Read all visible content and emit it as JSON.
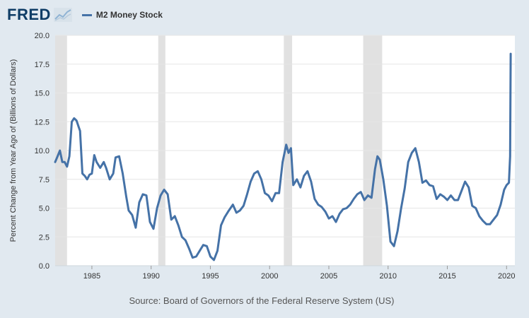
{
  "header": {
    "logo_text": "FRED",
    "logo_icon": "chart-line-icon",
    "legend_label": "M2 Money Stock"
  },
  "colors": {
    "background": "#e1e9f0",
    "plot_background": "#ffffff",
    "series": "#4572a7",
    "recession": "#e1e1e1",
    "grid": "#e6e6e6",
    "logo": "#0f3d66"
  },
  "source": "Source: Board of Governors of the Federal Reserve System (US)",
  "chart_data": {
    "type": "line",
    "title": "",
    "ylabel": "Percent Change from Year Ago of (Billions of Dollars)",
    "xlabel": "",
    "xlim": [
      1981.9,
      2020.7
    ],
    "ylim": [
      0,
      20
    ],
    "y_ticks": [
      0.0,
      2.5,
      5.0,
      7.5,
      10.0,
      12.5,
      15.0,
      17.5,
      20.0
    ],
    "y_tick_labels": [
      "0.0",
      "2.5",
      "5.0",
      "7.5",
      "10.0",
      "12.5",
      "15.0",
      "17.5",
      "20.0"
    ],
    "x_ticks": [
      1985,
      1990,
      1995,
      2000,
      2005,
      2010,
      2015,
      2020
    ],
    "x_tick_labels": [
      "1985",
      "1990",
      "1995",
      "2000",
      "2005",
      "2010",
      "2015",
      "2020"
    ],
    "grid": true,
    "legend": "top-left",
    "recessions": [
      [
        1981.9,
        1982.9
      ],
      [
        1990.6,
        1991.2
      ],
      [
        2001.2,
        2001.9
      ],
      [
        2007.9,
        2009.5
      ]
    ],
    "series": [
      {
        "name": "M2 Money Stock",
        "x": [
          1981.9,
          1982.1,
          1982.3,
          1982.5,
          1982.7,
          1982.9,
          1983.1,
          1983.3,
          1983.5,
          1983.7,
          1983.9,
          1984.0,
          1984.2,
          1984.4,
          1984.6,
          1984.8,
          1985.0,
          1985.2,
          1985.4,
          1985.7,
          1986.0,
          1986.2,
          1986.5,
          1986.8,
          1987.0,
          1987.3,
          1987.6,
          1987.9,
          1988.1,
          1988.4,
          1988.7,
          1989.0,
          1989.3,
          1989.6,
          1989.9,
          1990.2,
          1990.5,
          1990.8,
          1991.1,
          1991.4,
          1991.7,
          1992.0,
          1992.3,
          1992.6,
          1992.9,
          1993.2,
          1993.5,
          1993.8,
          1994.1,
          1994.4,
          1994.7,
          1995.0,
          1995.3,
          1995.6,
          1995.9,
          1996.2,
          1996.5,
          1996.9,
          1997.2,
          1997.5,
          1997.8,
          1998.1,
          1998.4,
          1998.7,
          1999.0,
          1999.3,
          1999.6,
          1999.9,
          2000.2,
          2000.5,
          2000.8,
          2001.1,
          2001.4,
          2001.6,
          2001.8,
          2002.0,
          2002.3,
          2002.6,
          2002.9,
          2003.2,
          2003.5,
          2003.8,
          2004.1,
          2004.4,
          2004.7,
          2005.0,
          2005.3,
          2005.6,
          2005.9,
          2006.2,
          2006.5,
          2006.8,
          2007.1,
          2007.4,
          2007.7,
          2008.0,
          2008.3,
          2008.6,
          2008.9,
          2009.1,
          2009.3,
          2009.6,
          2009.9,
          2010.2,
          2010.5,
          2010.8,
          2011.1,
          2011.4,
          2011.7,
          2012.0,
          2012.3,
          2012.6,
          2012.9,
          2013.2,
          2013.5,
          2013.8,
          2014.1,
          2014.4,
          2014.7,
          2015.0,
          2015.3,
          2015.6,
          2015.9,
          2016.2,
          2016.5,
          2016.8,
          2017.1,
          2017.4,
          2017.7,
          2018.0,
          2018.3,
          2018.6,
          2018.9,
          2019.2,
          2019.5,
          2019.8,
          2020.0,
          2020.1,
          2020.2,
          2020.3,
          2020.35
        ],
        "values": [
          9.0,
          9.5,
          10.0,
          9.0,
          9.0,
          8.6,
          9.5,
          12.5,
          12.8,
          12.6,
          12.0,
          11.7,
          8.0,
          7.8,
          7.5,
          7.9,
          8.0,
          9.6,
          9.0,
          8.5,
          9.0,
          8.5,
          7.5,
          8.0,
          9.4,
          9.5,
          8.0,
          6.0,
          4.8,
          4.4,
          3.3,
          5.5,
          6.2,
          6.1,
          3.8,
          3.2,
          5.0,
          6.1,
          6.6,
          6.2,
          4.0,
          4.3,
          3.5,
          2.5,
          2.2,
          1.5,
          0.7,
          0.8,
          1.3,
          1.8,
          1.7,
          0.8,
          0.5,
          1.3,
          3.5,
          4.2,
          4.7,
          5.3,
          4.6,
          4.8,
          5.2,
          6.2,
          7.3,
          8.0,
          8.2,
          7.5,
          6.3,
          6.1,
          5.6,
          6.3,
          6.3,
          9.0,
          10.5,
          9.8,
          10.2,
          7.0,
          7.5,
          6.8,
          7.8,
          8.2,
          7.3,
          5.8,
          5.3,
          5.1,
          4.7,
          4.1,
          4.3,
          3.8,
          4.5,
          4.9,
          5.0,
          5.3,
          5.8,
          6.2,
          6.4,
          5.7,
          6.1,
          5.9,
          8.4,
          9.5,
          9.2,
          7.5,
          5.2,
          2.1,
          1.7,
          3.0,
          5.0,
          6.7,
          9.0,
          9.8,
          10.2,
          9.0,
          7.2,
          7.4,
          7.0,
          6.9,
          5.8,
          6.2,
          6.0,
          5.7,
          6.1,
          5.7,
          5.7,
          6.5,
          7.3,
          6.8,
          5.2,
          5.0,
          4.3,
          3.9,
          3.6,
          3.6,
          4.0,
          4.4,
          5.3,
          6.6,
          7.0,
          7.1,
          7.2,
          9.5,
          18.4
        ]
      }
    ]
  }
}
